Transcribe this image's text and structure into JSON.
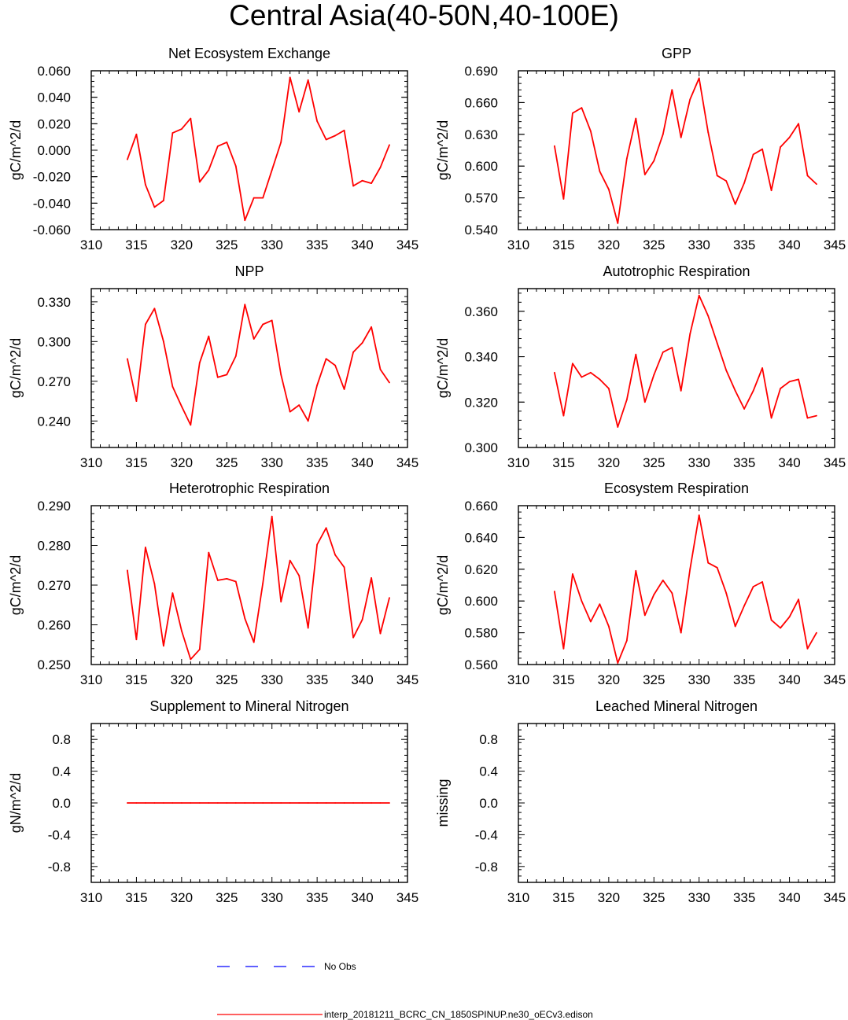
{
  "title": "Central Asia(40-50N,40-100E)",
  "legend": {
    "items": [
      {
        "label": "No Obs",
        "color": "#0000ff",
        "style": "dashed"
      },
      {
        "label": "interp_20181211_BCRC_CN_1850SPINUP.ne30_oECv3.edison",
        "color": "#ff0000",
        "style": "solid"
      }
    ]
  },
  "colors": {
    "series": "#ff0000",
    "obs": "#0000ff"
  },
  "chart_data": [
    {
      "type": "line",
      "title": "Net Ecosystem Exchange",
      "ylabel": "gC/m^2/d",
      "xlim": [
        310,
        345
      ],
      "ylim": [
        -0.06,
        0.06
      ],
      "xticks": [
        "310",
        "315",
        "320",
        "325",
        "330",
        "335",
        "340",
        "345"
      ],
      "yticks": [
        "-0.060",
        "-0.040",
        "-0.020",
        "0.000",
        "0.020",
        "0.040",
        "0.060"
      ],
      "x": [
        314,
        315,
        316,
        317,
        318,
        319,
        320,
        321,
        322,
        323,
        324,
        325,
        326,
        327,
        328,
        329,
        330,
        331,
        332,
        333,
        334,
        335,
        336,
        337,
        338,
        339,
        340,
        341,
        342,
        343
      ],
      "series": [
        {
          "values": [
            -0.007,
            0.012,
            -0.026,
            -0.043,
            -0.038,
            0.013,
            0.016,
            0.024,
            -0.024,
            -0.015,
            0.003,
            0.006,
            -0.012,
            -0.053,
            -0.036,
            -0.036,
            -0.015,
            0.006,
            0.055,
            0.029,
            0.053,
            0.022,
            0.008,
            0.011,
            0.015,
            -0.027,
            -0.023,
            -0.025,
            -0.013,
            0.004
          ]
        }
      ]
    },
    {
      "type": "line",
      "title": "GPP",
      "ylabel": "gC/m^2/d",
      "xlim": [
        310,
        345
      ],
      "ylim": [
        0.54,
        0.69
      ],
      "xticks": [
        "310",
        "315",
        "320",
        "325",
        "330",
        "335",
        "340",
        "345"
      ],
      "yticks": [
        "0.540",
        "0.570",
        "0.600",
        "0.630",
        "0.660",
        "0.690"
      ],
      "x": [
        314,
        315,
        316,
        317,
        318,
        319,
        320,
        321,
        322,
        323,
        324,
        325,
        326,
        327,
        328,
        329,
        330,
        331,
        332,
        333,
        334,
        335,
        336,
        337,
        338,
        339,
        340,
        341,
        342,
        343
      ],
      "series": [
        {
          "values": [
            0.619,
            0.569,
            0.65,
            0.655,
            0.633,
            0.595,
            0.578,
            0.546,
            0.607,
            0.645,
            0.592,
            0.605,
            0.63,
            0.672,
            0.627,
            0.663,
            0.683,
            0.632,
            0.591,
            0.586,
            0.564,
            0.584,
            0.611,
            0.616,
            0.577,
            0.618,
            0.627,
            0.64,
            0.591,
            0.583
          ]
        }
      ]
    },
    {
      "type": "line",
      "title": "NPP",
      "ylabel": "gC/m^2/d",
      "xlim": [
        310,
        345
      ],
      "ylim": [
        0.22,
        0.34
      ],
      "xticks": [
        "310",
        "315",
        "320",
        "325",
        "330",
        "335",
        "340",
        "345"
      ],
      "yticks": [
        "0.240",
        "0.270",
        "0.300",
        "0.330"
      ],
      "x": [
        314,
        315,
        316,
        317,
        318,
        319,
        320,
        321,
        322,
        323,
        324,
        325,
        326,
        327,
        328,
        329,
        330,
        331,
        332,
        333,
        334,
        335,
        336,
        337,
        338,
        339,
        340,
        341,
        342,
        343
      ],
      "series": [
        {
          "values": [
            0.287,
            0.255,
            0.313,
            0.325,
            0.3,
            0.266,
            0.251,
            0.237,
            0.284,
            0.304,
            0.273,
            0.275,
            0.289,
            0.328,
            0.302,
            0.313,
            0.316,
            0.275,
            0.247,
            0.252,
            0.24,
            0.267,
            0.287,
            0.282,
            0.264,
            0.292,
            0.299,
            0.311,
            0.279,
            0.269
          ]
        }
      ]
    },
    {
      "type": "line",
      "title": "Autotrophic Respiration",
      "ylabel": "gC/m^2/d",
      "xlim": [
        310,
        345
      ],
      "ylim": [
        0.3,
        0.37
      ],
      "xticks": [
        "310",
        "315",
        "320",
        "325",
        "330",
        "335",
        "340",
        "345"
      ],
      "yticks": [
        "0.300",
        "0.320",
        "0.340",
        "0.360"
      ],
      "x": [
        314,
        315,
        316,
        317,
        318,
        319,
        320,
        321,
        322,
        323,
        324,
        325,
        326,
        327,
        328,
        329,
        330,
        331,
        332,
        333,
        334,
        335,
        336,
        337,
        338,
        339,
        340,
        341,
        342,
        343
      ],
      "series": [
        {
          "values": [
            0.333,
            0.314,
            0.337,
            0.331,
            0.333,
            0.33,
            0.326,
            0.309,
            0.321,
            0.341,
            0.32,
            0.332,
            0.342,
            0.344,
            0.325,
            0.35,
            0.367,
            0.358,
            0.346,
            0.334,
            0.325,
            0.317,
            0.325,
            0.335,
            0.313,
            0.326,
            0.329,
            0.33,
            0.313,
            0.314
          ]
        }
      ]
    },
    {
      "type": "line",
      "title": "Heterotrophic Respiration",
      "ylabel": "gC/m^2/d",
      "xlim": [
        310,
        345
      ],
      "ylim": [
        0.25,
        0.29
      ],
      "xticks": [
        "310",
        "315",
        "320",
        "325",
        "330",
        "335",
        "340",
        "345"
      ],
      "yticks": [
        "0.250",
        "0.260",
        "0.270",
        "0.280",
        "0.290"
      ],
      "x": [
        314,
        315,
        316,
        317,
        318,
        319,
        320,
        321,
        322,
        323,
        324,
        325,
        326,
        327,
        328,
        329,
        330,
        331,
        332,
        333,
        334,
        335,
        336,
        337,
        338,
        339,
        340,
        341,
        342,
        343
      ],
      "series": [
        {
          "values": [
            0.2737,
            0.2563,
            0.2795,
            0.2703,
            0.2547,
            0.268,
            0.2585,
            0.2513,
            0.2538,
            0.2782,
            0.2712,
            0.2716,
            0.2709,
            0.2616,
            0.2556,
            0.2705,
            0.2873,
            0.2658,
            0.2762,
            0.2724,
            0.2592,
            0.2802,
            0.2844,
            0.2776,
            0.2745,
            0.2568,
            0.2613,
            0.2718,
            0.2578,
            0.2668
          ]
        }
      ]
    },
    {
      "type": "line",
      "title": "Ecosystem Respiration",
      "ylabel": "gC/m^2/d",
      "xlim": [
        310,
        345
      ],
      "ylim": [
        0.56,
        0.66
      ],
      "xticks": [
        "310",
        "315",
        "320",
        "325",
        "330",
        "335",
        "340",
        "345"
      ],
      "yticks": [
        "0.560",
        "0.580",
        "0.600",
        "0.620",
        "0.640",
        "0.660"
      ],
      "x": [
        314,
        315,
        316,
        317,
        318,
        319,
        320,
        321,
        322,
        323,
        324,
        325,
        326,
        327,
        328,
        329,
        330,
        331,
        332,
        333,
        334,
        335,
        336,
        337,
        338,
        339,
        340,
        341,
        342,
        343
      ],
      "series": [
        {
          "values": [
            0.606,
            0.57,
            0.617,
            0.6,
            0.587,
            0.598,
            0.584,
            0.561,
            0.575,
            0.619,
            0.591,
            0.604,
            0.613,
            0.605,
            0.58,
            0.62,
            0.654,
            0.624,
            0.621,
            0.605,
            0.584,
            0.597,
            0.609,
            0.612,
            0.588,
            0.583,
            0.59,
            0.601,
            0.57,
            0.58
          ]
        }
      ]
    },
    {
      "type": "line",
      "title": "Supplement to Mineral Nitrogen",
      "ylabel": "gN/m^2/d",
      "xlim": [
        310,
        345
      ],
      "ylim": [
        -1,
        1
      ],
      "xticks": [
        "310",
        "315",
        "320",
        "325",
        "330",
        "335",
        "340",
        "345"
      ],
      "yticks": [
        "-0.8",
        "-0.4",
        "0.0",
        "0.4",
        "0.8"
      ],
      "x": [
        314,
        315,
        316,
        317,
        318,
        319,
        320,
        321,
        322,
        323,
        324,
        325,
        326,
        327,
        328,
        329,
        330,
        331,
        332,
        333,
        334,
        335,
        336,
        337,
        338,
        339,
        340,
        341,
        342,
        343
      ],
      "series": [
        {
          "values": [
            0,
            0,
            0,
            0,
            0,
            0,
            0,
            0,
            0,
            0,
            0,
            0,
            0,
            0,
            0,
            0,
            0,
            0,
            0,
            0,
            0,
            0,
            0,
            0,
            0,
            0,
            0,
            0,
            0,
            0
          ]
        }
      ]
    },
    {
      "type": "line",
      "title": "Leached Mineral Nitrogen",
      "ylabel": "missing",
      "xlim": [
        310,
        345
      ],
      "ylim": [
        -1,
        1
      ],
      "xticks": [
        "310",
        "315",
        "320",
        "325",
        "330",
        "335",
        "340",
        "345"
      ],
      "yticks": [
        "-0.8",
        "-0.4",
        "0.0",
        "0.4",
        "0.8"
      ],
      "x": [],
      "series": []
    }
  ]
}
